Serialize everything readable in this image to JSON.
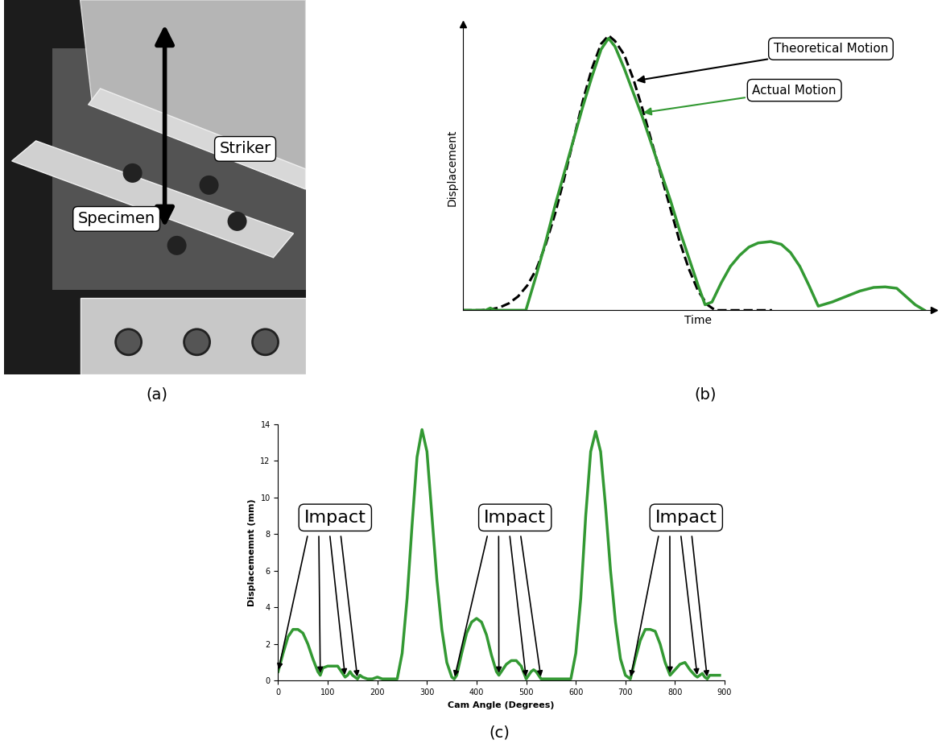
{
  "photo": {
    "caption": "(a)",
    "labels": {
      "striker": "Striker",
      "specimen": "Specimen"
    }
  },
  "chart_data": [
    {
      "type": "line",
      "caption": "(b)",
      "x_label": "Time",
      "y_label": "Displacement",
      "xlim": [
        0,
        102
      ],
      "ylim": [
        0,
        104
      ],
      "tick_labels": false,
      "grid": false,
      "series": [
        {
          "name": "Theoretical Motion",
          "color": "#000000",
          "line_style": "dashed",
          "x": [
            0,
            4,
            6,
            8,
            10,
            12,
            14,
            16,
            18,
            20,
            22,
            24,
            26,
            28,
            30,
            31.6,
            33,
            35,
            37,
            39,
            41,
            43,
            45,
            47,
            49,
            51,
            53,
            54.7,
            57,
            60,
            63,
            67
          ],
          "values": [
            0,
            0,
            0.3,
            1,
            2.5,
            5,
            9,
            15,
            24,
            35,
            48,
            62,
            76,
            88,
            97,
            100,
            98,
            93,
            84,
            73,
            61,
            49,
            37,
            25,
            15,
            7,
            2,
            0,
            0,
            0,
            0,
            0
          ]
        },
        {
          "name": "Actual Motion",
          "color": "#339933",
          "line_style": "solid",
          "x": [
            0,
            5,
            6,
            7,
            10,
            13.7,
            16,
            18,
            20,
            22,
            24,
            26,
            28,
            30,
            31.6,
            33,
            35,
            37,
            39,
            41,
            43,
            45,
            47,
            49,
            51,
            52.5,
            54,
            56,
            58,
            60,
            62,
            64,
            66.7,
            69,
            71,
            73,
            75,
            77,
            80,
            83,
            86,
            89,
            91.5,
            94,
            96,
            98,
            100
          ],
          "values": [
            0,
            0,
            0.8,
            0,
            0,
            0,
            13,
            25,
            38,
            50,
            62,
            74,
            85,
            95,
            99,
            96,
            88,
            79,
            70,
            60,
            50,
            40,
            29,
            19,
            9,
            2,
            3,
            10,
            16,
            20,
            23,
            24.5,
            25,
            24,
            21,
            16,
            9,
            1.5,
            3,
            5,
            7,
            8.3,
            8.5,
            8,
            5,
            2,
            0
          ]
        }
      ]
    },
    {
      "type": "line",
      "caption": "(c)",
      "x_label": "Cam Angle (Degrees)",
      "y_label": "Displacememnt (mm)",
      "xlim": [
        0,
        900
      ],
      "ylim": [
        0,
        14
      ],
      "xticks": [
        0,
        100,
        200,
        300,
        400,
        500,
        600,
        700,
        800,
        900
      ],
      "yticks": [
        0,
        2,
        4,
        6,
        8,
        10,
        12,
        14
      ],
      "grid": false,
      "color": "#339933",
      "x": [
        0,
        10,
        20,
        30,
        40,
        50,
        60,
        70,
        80,
        85,
        90,
        100,
        110,
        120,
        130,
        135,
        140,
        145,
        150,
        160,
        165,
        170,
        180,
        190,
        200,
        210,
        220,
        230,
        240,
        250,
        260,
        270,
        280,
        290,
        300,
        310,
        320,
        330,
        340,
        350,
        355,
        360,
        370,
        380,
        390,
        400,
        410,
        420,
        430,
        440,
        445,
        450,
        460,
        470,
        480,
        490,
        500,
        510,
        515,
        520,
        530,
        540,
        550,
        560,
        570,
        580,
        590,
        600,
        610,
        620,
        630,
        640,
        650,
        660,
        670,
        680,
        690,
        700,
        710,
        720,
        730,
        740,
        750,
        760,
        770,
        780,
        790,
        800,
        810,
        820,
        830,
        840,
        845,
        850,
        855,
        860,
        865,
        870,
        880,
        890
      ],
      "values": [
        0.5,
        1.5,
        2.4,
        2.8,
        2.8,
        2.6,
        2.0,
        1.2,
        0.5,
        0.3,
        0.7,
        0.8,
        0.8,
        0.8,
        0.4,
        0.2,
        0.3,
        0.5,
        0.3,
        0.1,
        0.3,
        0.2,
        0.1,
        0.1,
        0.2,
        0.1,
        0.1,
        0.1,
        0.1,
        1.5,
        4.5,
        8.5,
        12.2,
        13.7,
        12.5,
        9.0,
        5.5,
        2.8,
        1.0,
        0.2,
        0.1,
        0.3,
        1.5,
        2.6,
        3.2,
        3.4,
        3.2,
        2.5,
        1.4,
        0.5,
        0.3,
        0.5,
        0.9,
        1.1,
        1.1,
        0.8,
        0.1,
        0.5,
        0.6,
        0.5,
        0.1,
        0.1,
        0.1,
        0.1,
        0.1,
        0.1,
        0.1,
        1.5,
        4.5,
        9.0,
        12.5,
        13.6,
        12.5,
        9.5,
        6.0,
        3.2,
        1.2,
        0.3,
        0.1,
        1.2,
        2.2,
        2.8,
        2.8,
        2.7,
        2.0,
        1.0,
        0.3,
        0.6,
        0.9,
        1.0,
        0.6,
        0.3,
        0.2,
        0.3,
        0.4,
        0.2,
        0.1,
        0.3,
        0.3,
        0.3
      ],
      "annotations": [
        {
          "text": "Impact",
          "x": [
            0,
            85,
            135,
            160
          ]
        },
        {
          "text": "Impact",
          "x": [
            355,
            445,
            500,
            530
          ]
        },
        {
          "text": "Impact",
          "x": [
            710,
            790,
            845,
            865
          ]
        }
      ]
    }
  ]
}
